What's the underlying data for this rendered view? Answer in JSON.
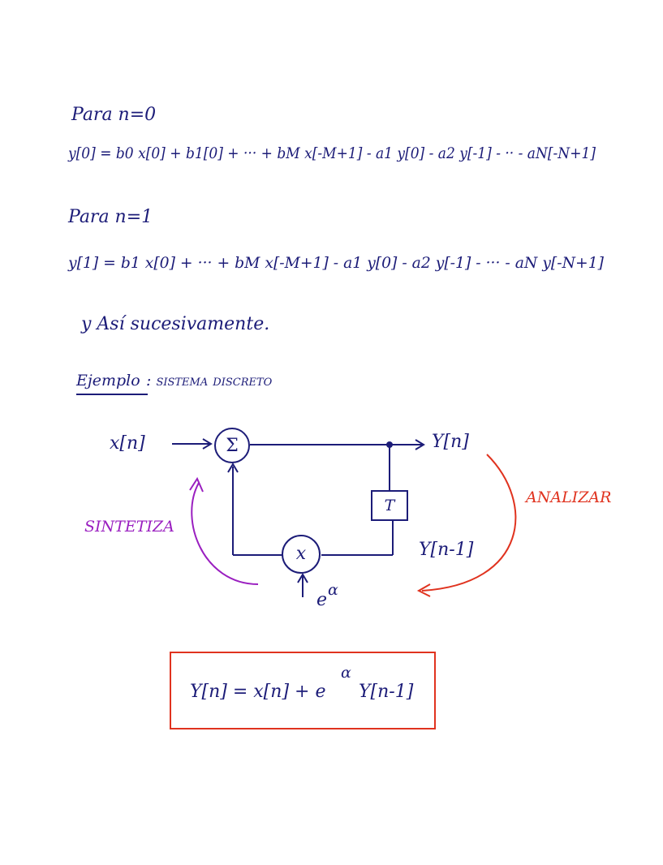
{
  "notes": {
    "line_1": "Para n=0",
    "line_2": "y[0] = b0 x[0] + b1[0] + ··· + bM x[-M+1] - a1 y[0] - a2 y[-1] - ·· - aN[-N+1]",
    "line_3": "Para n=1",
    "line_4": "y[1] = b1 x[0] + ··· + bM x[-M+1] - a1 y[0] - a2 y[-1] - ··· - aN y[-N+1]",
    "line_5": "y Así sucesivamente."
  },
  "example": {
    "heading": "Ejemplo",
    "heading_rest": ": sistema discreto",
    "diagram": {
      "input": "x[n]",
      "sum": "Σ",
      "output": "Y[n]",
      "delay": "T",
      "delayed": "Y[n-1]",
      "multiplier": "x",
      "gain_base": "e",
      "gain_exp": "α",
      "synthesize": "SINTETIZA",
      "analyze": "ANALIZAR"
    },
    "result": {
      "lhs": "Y[n] = x[n] + e",
      "exp": "α",
      "rhs": "Y[n-1]"
    }
  }
}
